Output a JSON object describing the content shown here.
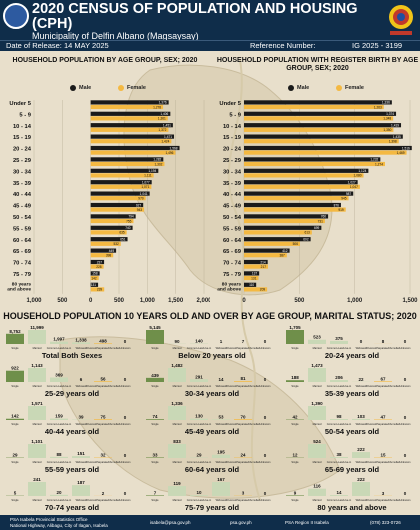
{
  "header": {
    "title": "2020 CENSUS OF POPULATION AND HOUSING (CPH)",
    "subtitle": "Municipality of Delfin Albano (Magsaysay)",
    "release": "Date of Release: 14 MAY 2025",
    "reference_label": "Reference Number:",
    "reference_value": "IG 2025 - 3199"
  },
  "colors": {
    "male": "#1a1a1a",
    "female": "#f4b942",
    "navy": "#0f2d4a",
    "single": "#6f8f4a",
    "married": "#c9d8b6"
  },
  "chart_data": [
    {
      "type": "bar",
      "title": "HOUSEHOLD POPULATION BY AGE GROUP, SEX; 2020",
      "categories": [
        "Under 5",
        "5 - 9",
        "10 - 14",
        "15 - 19",
        "20 - 24",
        "25 - 29",
        "30 - 34",
        "35 - 39",
        "40 - 44",
        "45 - 49",
        "50 - 54",
        "55 - 59",
        "60 - 64",
        "65 - 69",
        "70 - 74",
        "75 - 79",
        "80 years and above"
      ],
      "x_ticks": [
        "1,000",
        "500",
        "0",
        "500",
        "1,000",
        "1,500",
        "2,000"
      ],
      "xlim": [
        -1000,
        2000
      ],
      "series": [
        {
          "name": "Male",
          "values": [
            1376,
            1406,
            1451,
            1471,
            1568,
            1282,
            1194,
            1077,
            1041,
            927,
            794,
            740,
            651,
            449,
            237,
            158,
            131
          ]
        },
        {
          "name": "Female",
          "values": [
            1278,
            1361,
            1372,
            1424,
            1496,
            1302,
            1111,
            1071,
            970,
            943,
            755,
            635,
            532,
            398,
            228,
            142,
            239
          ]
        }
      ]
    },
    {
      "type": "bar",
      "title": "HOUSEHOLD POPULATION WITH REGISTER BIRTH BY AGE GROUP, SEX; 2020",
      "categories": [
        "Under 5",
        "5 - 9",
        "10 - 14",
        "15 - 19",
        "20 - 24",
        "25 - 29",
        "30 - 34",
        "35 - 39",
        "40 - 44",
        "45 - 49",
        "50 - 54",
        "55 - 59",
        "60 - 64",
        "65 - 69",
        "70 - 74",
        "75 - 79",
        "80 years and above"
      ],
      "x_ticks": [
        "0",
        "500",
        "1,000",
        "1,500"
      ],
      "xlim": [
        0,
        1500
      ],
      "series": [
        {
          "name": "Male",
          "values": [
            1336,
            1374,
            1419,
            1435,
            1516,
            1232,
            1124,
            1027,
            987,
            876,
            760,
            699,
            602,
            412,
            214,
            137,
            110
          ]
        },
        {
          "name": "Female",
          "values": [
            1263,
            1348,
            1350,
            1398,
            1469,
            1274,
            1080,
            1047,
            945,
            919,
            731,
            613,
            506,
            387,
            217,
            131,
            209
          ]
        }
      ]
    },
    {
      "type": "bar",
      "title": "HOUSEHOLD POPULATION 10 YEARS OLD AND OVER BY AGE GROUP, MARITAL STATUS; 2020",
      "status_labels": [
        "Single",
        "Married",
        "Common-Law/Live-in",
        "Widowed",
        "Divorced/Separated/Annulled",
        "Unknown"
      ],
      "panels": [
        {
          "name": "Total Both Sexes",
          "values": [
            8752,
            11999,
            1997,
            1338,
            498,
            0
          ]
        },
        {
          "name": "Below 20 years old",
          "values": [
            5145,
            90,
            140,
            1,
            7,
            0
          ]
        },
        {
          "name": "20-24 years old",
          "values": [
            1705,
            523,
            375,
            0,
            8,
            0
          ]
        },
        {
          "name": "25-29 years old",
          "values": [
            922,
            1143,
            369,
            6,
            56,
            0
          ]
        },
        {
          "name": "30-34 years old",
          "values": [
            439,
            1482,
            291,
            14,
            81,
            0
          ]
        },
        {
          "name": "35-39 years old",
          "values": [
            188,
            1473,
            206,
            22,
            67,
            0
          ]
        },
        {
          "name": "40-44 years old",
          "values": [
            142,
            1571,
            159,
            39,
            75,
            0
          ]
        },
        {
          "name": "45-49 years old",
          "values": [
            74,
            1336,
            130,
            53,
            70,
            0
          ]
        },
        {
          "name": "50-54 years old",
          "values": [
            42,
            1390,
            98,
            103,
            47,
            0
          ]
        },
        {
          "name": "55-59 years old",
          "values": [
            29,
            1101,
            88,
            151,
            32,
            0
          ]
        },
        {
          "name": "60-64 years old",
          "values": [
            33,
            833,
            29,
            195,
            24,
            0
          ]
        },
        {
          "name": "65-69 years old",
          "values": [
            12,
            524,
            38,
            222,
            15,
            0
          ]
        },
        {
          "name": "70-74 years old",
          "values": [
            5,
            241,
            20,
            187,
            2,
            0
          ]
        },
        {
          "name": "75-79 years old",
          "values": [
            7,
            119,
            10,
            167,
            3,
            0
          ]
        },
        {
          "name": "80 years and above",
          "values": [
            9,
            116,
            14,
            222,
            3,
            0
          ]
        }
      ]
    }
  ],
  "legend": {
    "male": "Male",
    "female": "Female"
  },
  "footer": {
    "office": "PSA Isabela Provincial Statistics Office",
    "address": "National Highway, Alibagu, City of Ilagan, Isabela",
    "email": "isabela@psa.gov.ph",
    "web": "psa.gov.ph",
    "fb": "PSA Region II Isabela",
    "phone": "(078) 323-0726"
  }
}
